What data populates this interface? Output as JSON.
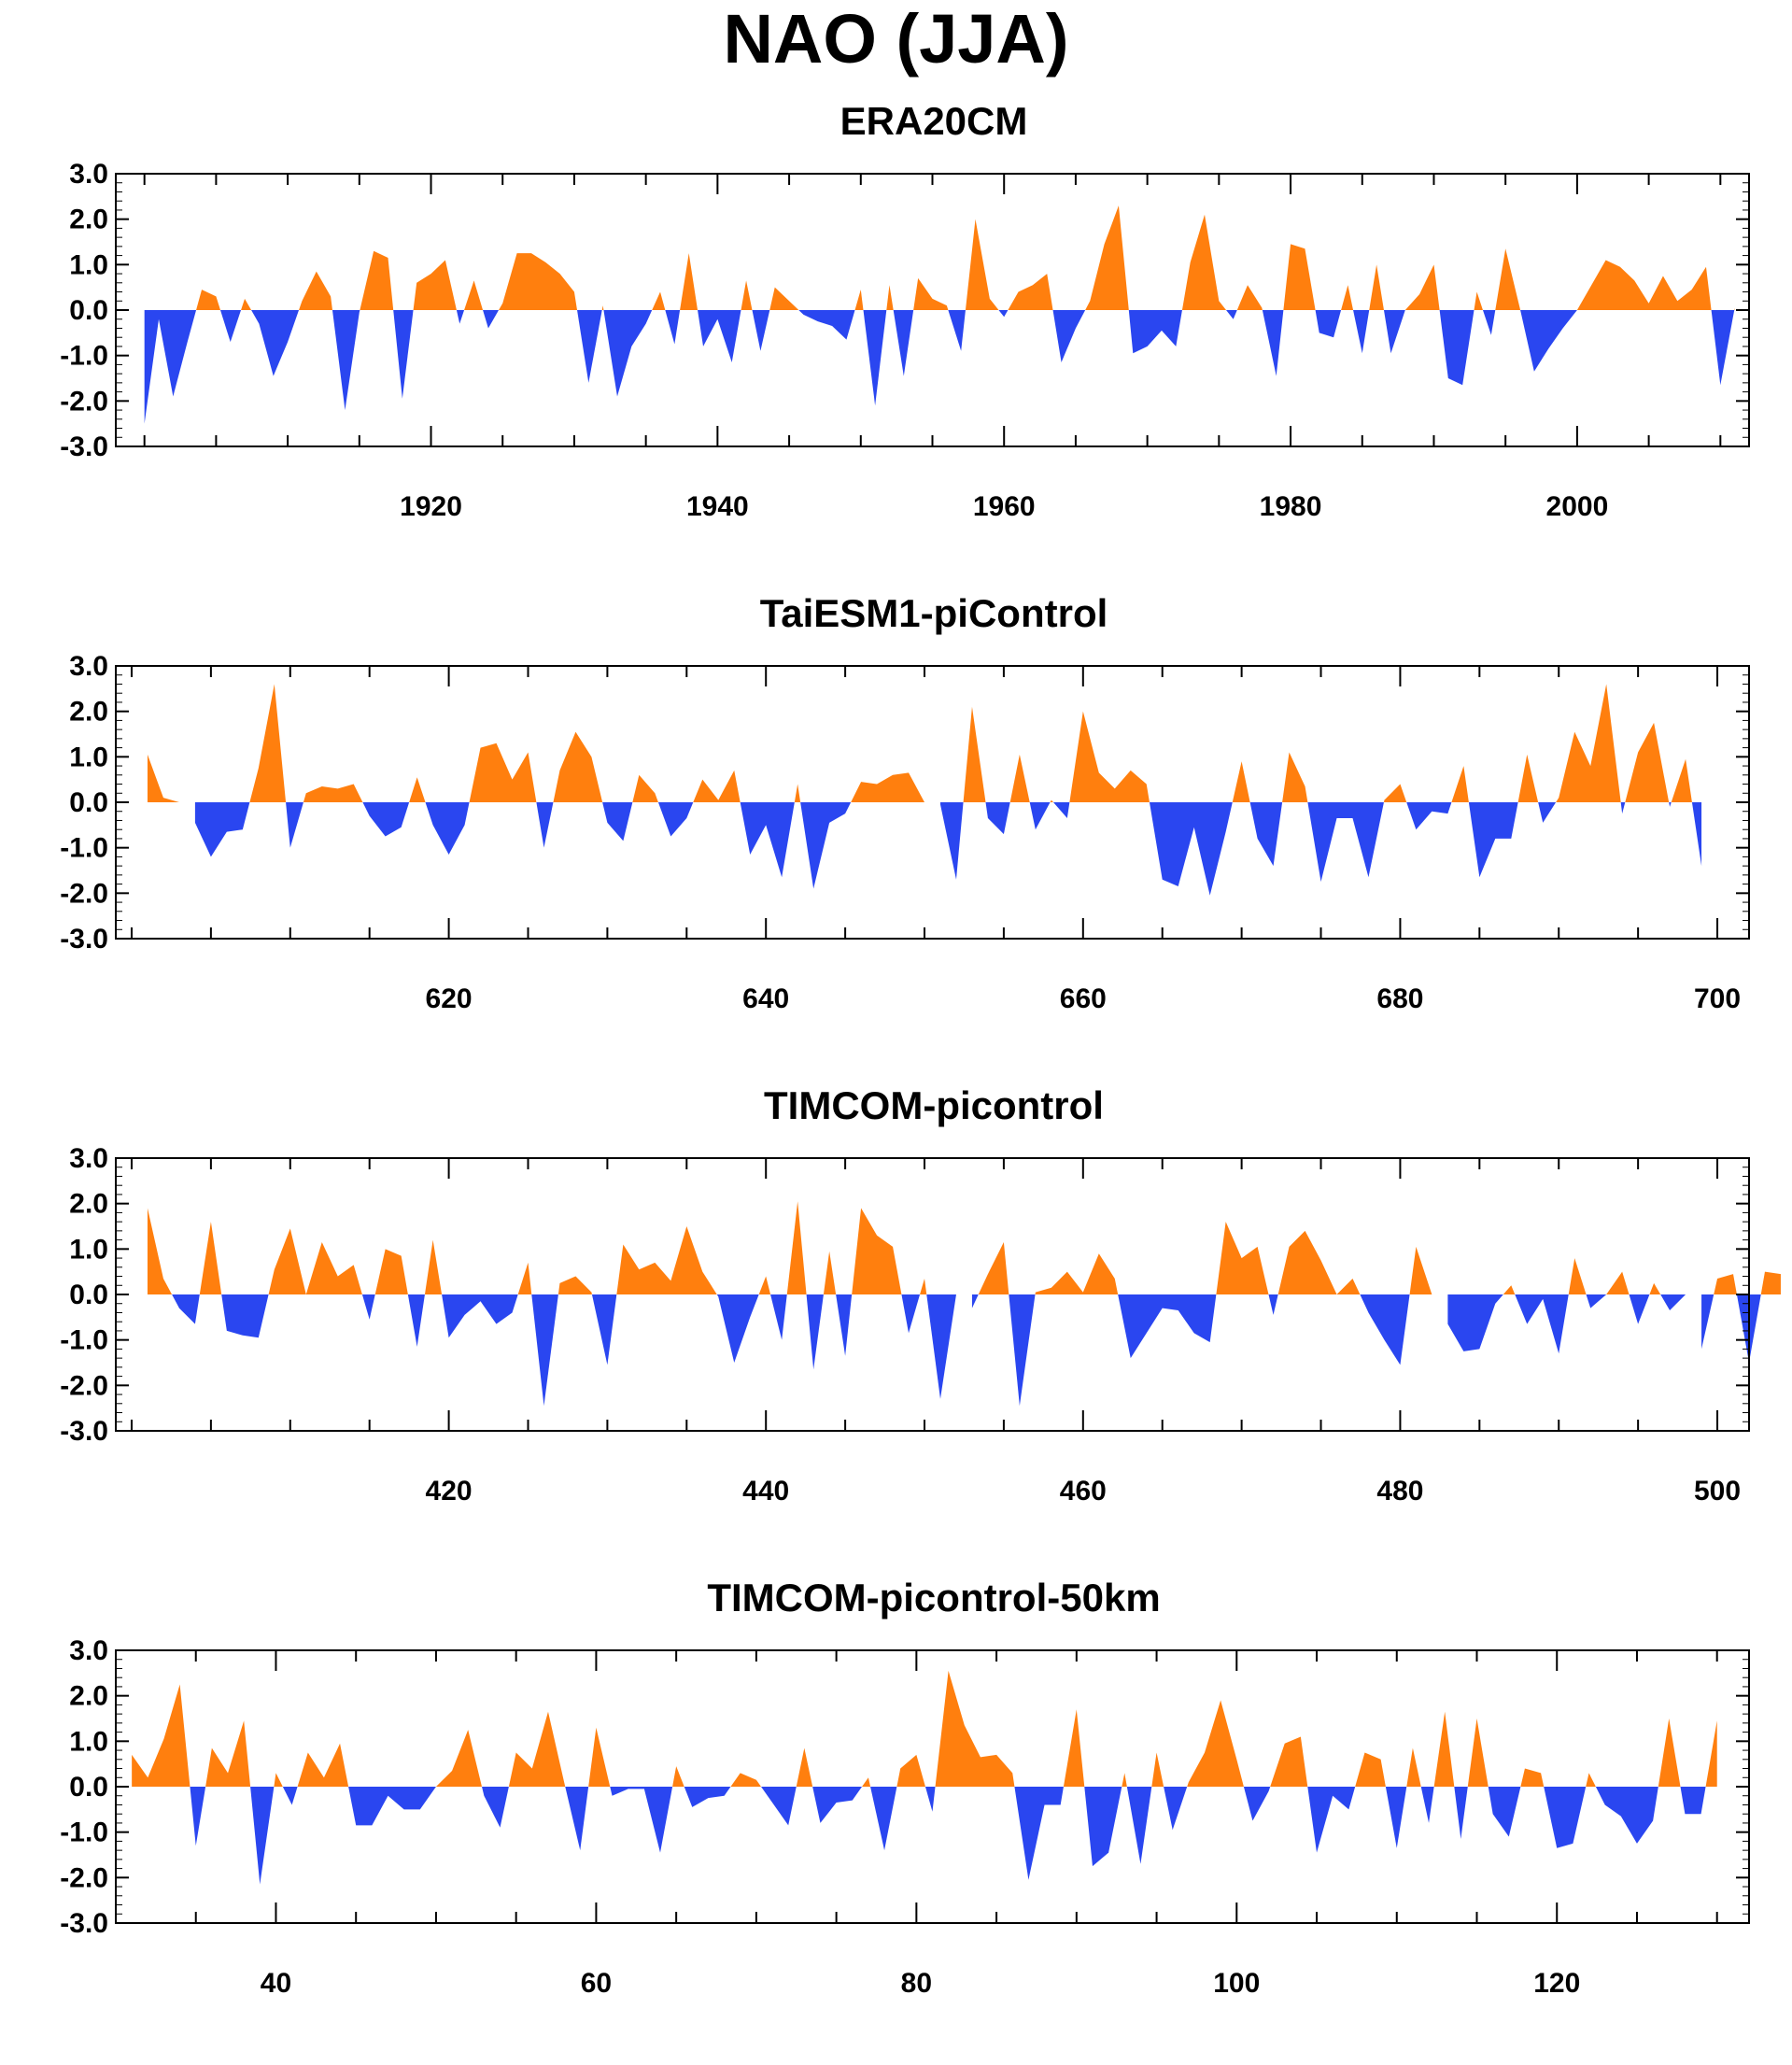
{
  "title": "NAO (JJA)",
  "colors": {
    "positive": "#ff7f0e",
    "negative": "#2a46f0",
    "axis": "#000000"
  },
  "chart_data": [
    {
      "type": "area",
      "title": "ERA20CM",
      "ylim": [
        -3,
        3
      ],
      "yticks": [
        "3.0",
        "2.0",
        "1.0",
        "0.0",
        "-1.0",
        "-2.0",
        "-3.0"
      ],
      "xlim": [
        1898,
        2012
      ],
      "xticks": [
        1920,
        1940,
        1960,
        1980,
        2000
      ],
      "xtick_labels": [
        "1920",
        "1940",
        "1960",
        "1980",
        "2000"
      ],
      "x_start": 1900,
      "values": [
        -2.5,
        -0.2,
        -1.9,
        -0.7,
        0.45,
        0.3,
        -0.7,
        0.25,
        -0.3,
        -1.45,
        -0.7,
        0.2,
        0.85,
        0.3,
        -2.2,
        -0.05,
        1.3,
        1.15,
        -1.95,
        0.6,
        0.8,
        1.1,
        -0.3,
        0.65,
        -0.4,
        0.15,
        1.25,
        1.25,
        1.05,
        0.8,
        0.4,
        -1.6,
        0.1,
        -1.9,
        -0.8,
        -0.3,
        0.4,
        -0.75,
        1.25,
        -0.8,
        -0.2,
        -1.15,
        0.65,
        -0.9,
        0.5,
        0.2,
        -0.1,
        -0.25,
        -0.35,
        -0.65,
        0.45,
        -2.1,
        0.55,
        -1.45,
        0.7,
        0.25,
        0.1,
        -0.9,
        2.0,
        0.25,
        -0.15,
        0.4,
        0.55,
        0.8,
        -1.15,
        -0.4,
        0.2,
        1.45,
        2.3,
        -0.95,
        -0.8,
        -0.45,
        -0.8,
        1.05,
        2.1,
        0.2,
        -0.2,
        0.55,
        0.05,
        -1.45,
        1.45,
        1.35,
        -0.5,
        -0.6,
        0.55,
        -0.95,
        1.0,
        -0.95,
        0.0,
        0.35,
        1.0,
        -1.5,
        -1.65,
        0.4,
        -0.55,
        1.35,
        0.05,
        -1.35,
        -0.85,
        -0.4,
        0.0,
        0.55,
        1.1,
        0.95,
        0.65,
        0.15,
        0.75,
        0.2,
        0.45,
        0.95,
        -1.65,
        0.05
      ]
    },
    {
      "type": "area",
      "title": "TaiESM1-piControl",
      "ylim": [
        -3,
        3
      ],
      "yticks": [
        "3.0",
        "2.0",
        "1.0",
        "0.0",
        "-1.0",
        "-2.0",
        "-3.0"
      ],
      "xlim": [
        599,
        702
      ],
      "xticks": [
        620,
        640,
        660,
        680,
        700
      ],
      "xtick_labels": [
        "620",
        "640",
        "660",
        "680",
        "700"
      ],
      "x_start": 601,
      "values": [
        1.05,
        0.1,
        0.0,
        -0.45,
        -1.2,
        -0.65,
        -0.6,
        0.75,
        2.6,
        -1.0,
        0.2,
        0.35,
        0.3,
        0.4,
        -0.3,
        -0.75,
        -0.55,
        0.55,
        -0.5,
        -1.15,
        -0.5,
        1.2,
        1.3,
        0.5,
        1.1,
        -1.0,
        0.7,
        1.55,
        1.0,
        -0.45,
        -0.85,
        0.6,
        0.2,
        -0.75,
        -0.35,
        0.5,
        0.05,
        0.7,
        -1.15,
        -0.5,
        -1.65,
        0.4,
        -1.9,
        -0.45,
        -0.25,
        0.45,
        0.4,
        0.6,
        0.65,
        0.0,
        -0.05,
        -1.7,
        2.1,
        -0.35,
        -0.7,
        1.05,
        -0.6,
        0.05,
        -0.35,
        2.0,
        0.65,
        0.3,
        0.7,
        0.4,
        -1.7,
        -1.85,
        -0.55,
        -2.05,
        -0.65,
        0.9,
        -0.8,
        -1.4,
        1.1,
        0.35,
        -1.75,
        -0.35,
        -0.35,
        -1.65,
        0.05,
        0.4,
        -0.6,
        -0.2,
        -0.25,
        0.8,
        -1.65,
        -0.8,
        -0.8,
        1.05,
        -0.45,
        0.1,
        1.55,
        0.8,
        2.6,
        -0.25,
        1.1,
        1.75,
        -0.1,
        0.95,
        -1.4
      ]
    },
    {
      "type": "area",
      "title": "TIMCOM-picontrol",
      "ylim": [
        -3,
        3
      ],
      "yticks": [
        "3.0",
        "2.0",
        "1.0",
        "0.0",
        "-1.0",
        "-2.0",
        "-3.0"
      ],
      "xlim": [
        399,
        502
      ],
      "xticks": [
        420,
        440,
        460,
        480,
        500
      ],
      "xtick_labels": [
        "420",
        "440",
        "460",
        "480",
        "500"
      ],
      "x_start": 401,
      "values": [
        1.9,
        0.35,
        -0.3,
        -0.65,
        1.6,
        -0.8,
        -0.9,
        -0.95,
        0.55,
        1.45,
        0.0,
        1.15,
        0.4,
        0.65,
        -0.55,
        1.0,
        0.85,
        -1.15,
        1.2,
        -0.95,
        -0.45,
        -0.15,
        -0.65,
        -0.4,
        0.7,
        -2.45,
        0.25,
        0.4,
        0.05,
        -1.55,
        1.1,
        0.55,
        0.7,
        0.3,
        1.5,
        0.5,
        -0.05,
        -1.5,
        -0.5,
        0.4,
        -1.0,
        2.05,
        -1.65,
        0.95,
        -1.35,
        1.9,
        1.3,
        1.05,
        -0.85,
        0.35,
        -2.3,
        0.0,
        -0.3,
        0.45,
        1.15,
        -2.45,
        0.05,
        0.15,
        0.5,
        0.05,
        0.9,
        0.35,
        -1.4,
        -0.85,
        -0.3,
        -0.35,
        -0.85,
        -1.05,
        1.6,
        0.8,
        1.05,
        -0.45,
        1.05,
        1.4,
        0.75,
        0.0,
        0.35,
        -0.4,
        -1.0,
        -1.55,
        1.05,
        0.0,
        -0.65,
        -1.25,
        -1.2,
        -0.2,
        0.2,
        -0.65,
        -0.1,
        -1.3,
        0.8,
        -0.3,
        0.0,
        0.5,
        -0.65,
        0.25,
        -0.35,
        0.0,
        -1.2,
        0.35,
        0.45,
        -1.5,
        0.5,
        0.45
      ]
    },
    {
      "type": "area",
      "title": "TIMCOM-picontrol-50km",
      "ylim": [
        -3,
        3
      ],
      "yticks": [
        "3.0",
        "2.0",
        "1.0",
        "0.0",
        "-1.0",
        "-2.0",
        "-3.0"
      ],
      "xlim": [
        30,
        132
      ],
      "xticks": [
        40,
        60,
        80,
        100,
        120
      ],
      "xtick_labels": [
        "40",
        "60",
        "80",
        "100",
        "120"
      ],
      "x_start": 31,
      "values": [
        0.7,
        0.2,
        1.05,
        2.25,
        -1.3,
        0.85,
        0.3,
        1.45,
        -2.15,
        0.3,
        -0.4,
        0.75,
        0.2,
        0.95,
        -0.85,
        -0.85,
        -0.2,
        -0.5,
        -0.5,
        0.0,
        0.35,
        1.25,
        -0.2,
        -0.9,
        0.75,
        0.4,
        1.65,
        0.1,
        -1.4,
        1.3,
        -0.2,
        -0.05,
        -0.05,
        -1.45,
        0.45,
        -0.45,
        -0.25,
        -0.2,
        0.3,
        0.15,
        -0.35,
        -0.85,
        0.85,
        -0.8,
        -0.35,
        -0.3,
        0.2,
        -1.4,
        0.4,
        0.7,
        -0.55,
        2.55,
        1.35,
        0.65,
        0.7,
        0.3,
        -2.05,
        -0.4,
        -0.4,
        1.7,
        -1.75,
        -1.45,
        0.3,
        -1.7,
        0.75,
        -0.95,
        0.1,
        0.75,
        1.9,
        0.6,
        -0.75,
        -0.1,
        0.95,
        1.1,
        -1.45,
        -0.2,
        -0.5,
        0.75,
        0.6,
        -1.35,
        0.85,
        -0.8,
        1.65,
        -1.15,
        1.5,
        -0.6,
        -1.1,
        0.4,
        0.3,
        -1.35,
        -1.25,
        0.3,
        -0.4,
        -0.65,
        -1.25,
        -0.75,
        1.5,
        -0.6,
        -0.6,
        1.45
      ]
    }
  ]
}
